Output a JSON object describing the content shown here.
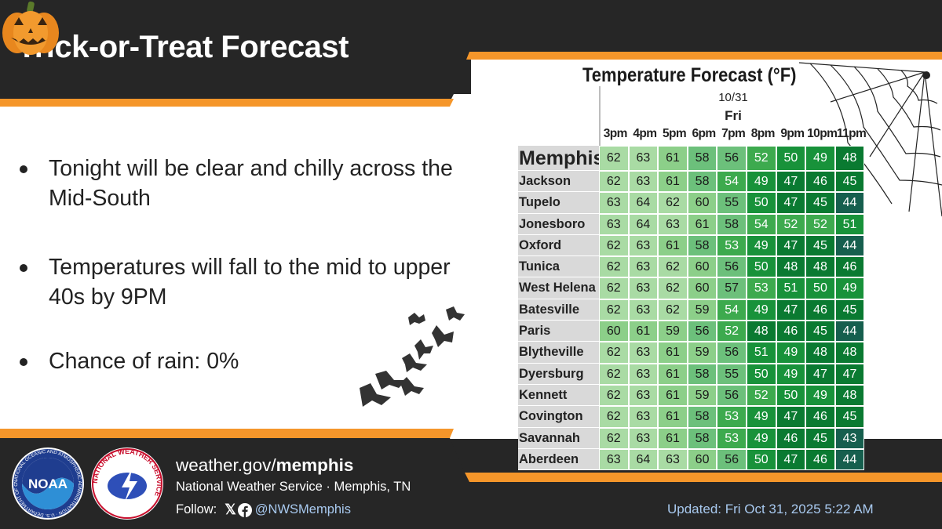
{
  "header": {
    "title": "Trick-or-Treat Forecast",
    "pumpkin_icon": "jack-o-lantern-icon"
  },
  "bullets": [
    "Tonight will be clear and chilly across the Mid-South",
    "Temperatures will fall to the mid to upper 40s by 9PM",
    "Chance of rain: 0%"
  ],
  "decorations": {
    "bats_icon": "bats-icon",
    "web_icon": "spider-web-icon"
  },
  "colors": {
    "accent_orange": "#f5962a",
    "dark_band": "#262626",
    "temp_62_plus": "#a9dba4",
    "temp_59_61": "#8ccf89",
    "temp_55_58": "#6cc07b",
    "temp_52_54": "#3daa4e",
    "temp_49_51": "#18923a",
    "temp_45_48": "#0a7a31",
    "temp_44_below": "#165f4e"
  },
  "chart_data": {
    "type": "table",
    "title": "Temperature Forecast (°F)",
    "date": "10/31",
    "day": "Fri",
    "columns": [
      "3pm",
      "4pm",
      "5pm",
      "6pm",
      "7pm",
      "8pm",
      "9pm",
      "10pm",
      "11pm"
    ],
    "rows": [
      {
        "city": "Memphis",
        "values": [
          62,
          63,
          61,
          58,
          56,
          52,
          50,
          49,
          48
        ]
      },
      {
        "city": "Jackson",
        "values": [
          62,
          63,
          61,
          58,
          54,
          49,
          47,
          46,
          45
        ]
      },
      {
        "city": "Tupelo",
        "values": [
          63,
          64,
          62,
          60,
          55,
          50,
          47,
          45,
          44
        ]
      },
      {
        "city": "Jonesboro",
        "values": [
          63,
          64,
          63,
          61,
          58,
          54,
          52,
          52,
          51
        ]
      },
      {
        "city": "Oxford",
        "values": [
          62,
          63,
          61,
          58,
          53,
          49,
          47,
          45,
          44
        ]
      },
      {
        "city": "Tunica",
        "values": [
          62,
          63,
          62,
          60,
          56,
          50,
          48,
          48,
          46
        ]
      },
      {
        "city": "West Helena",
        "values": [
          62,
          63,
          62,
          60,
          57,
          53,
          51,
          50,
          49
        ]
      },
      {
        "city": "Batesville",
        "values": [
          62,
          63,
          62,
          59,
          54,
          49,
          47,
          46,
          45
        ]
      },
      {
        "city": "Paris",
        "values": [
          60,
          61,
          59,
          56,
          52,
          48,
          46,
          45,
          44
        ]
      },
      {
        "city": "Blytheville",
        "values": [
          62,
          63,
          61,
          59,
          56,
          51,
          49,
          48,
          48
        ]
      },
      {
        "city": "Dyersburg",
        "values": [
          62,
          63,
          61,
          58,
          55,
          50,
          49,
          47,
          47
        ]
      },
      {
        "city": "Kennett",
        "values": [
          62,
          63,
          61,
          59,
          56,
          52,
          50,
          49,
          48
        ]
      },
      {
        "city": "Covington",
        "values": [
          62,
          63,
          61,
          58,
          53,
          49,
          47,
          46,
          45
        ]
      },
      {
        "city": "Savannah",
        "values": [
          62,
          63,
          61,
          58,
          53,
          49,
          46,
          45,
          43
        ]
      },
      {
        "city": "Aberdeen",
        "values": [
          63,
          64,
          63,
          60,
          56,
          50,
          47,
          46,
          44
        ]
      }
    ]
  },
  "footer": {
    "site_prefix": "weather.gov/",
    "site_office": "memphis",
    "office": "National Weather Service · Memphis, TN",
    "follow_label": "Follow:",
    "handle": "@NWSMemphis",
    "updated": "Updated: Fri Oct 31, 2025 5:22 AM",
    "noaa_logo_text": "NOAA",
    "noaa_ring_text": "NATIONAL OCEANIC AND ATMOSPHERIC ADMINISTRATION · U.S. DEPARTMENT OF COMMERCE",
    "nws_ring_text": "NATIONAL WEATHER SERVICE",
    "x_icon": "x-logo-icon",
    "facebook_icon": "facebook-icon"
  }
}
